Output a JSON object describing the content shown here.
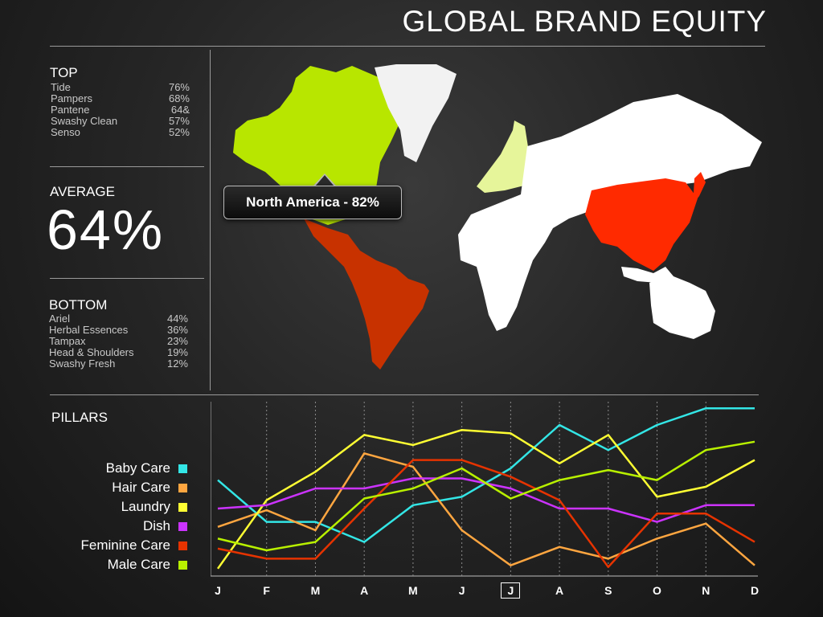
{
  "header": {
    "title": "GLOBAL BRAND EQUITY"
  },
  "top": {
    "label": "TOP",
    "items": [
      {
        "name": "Tide",
        "value": "76%"
      },
      {
        "name": "Pampers",
        "value": "68%"
      },
      {
        "name": "Pantene",
        "value": "64&"
      },
      {
        "name": "Swashy Clean",
        "value": "57%"
      },
      {
        "name": "Senso",
        "value": "52%"
      }
    ]
  },
  "average": {
    "label": "AVERAGE",
    "value": "64%"
  },
  "bottom": {
    "label": "BOTTOM",
    "items": [
      {
        "name": "Ariel",
        "value": "44%"
      },
      {
        "name": "Herbal Essences",
        "value": "36%"
      },
      {
        "name": "Tampax",
        "value": "23%"
      },
      {
        "name": "Head & Shoulders",
        "value": "19%"
      },
      {
        "name": "Swashy Fresh",
        "value": "12%"
      }
    ]
  },
  "map": {
    "tooltip": "North America - 82%",
    "colors": {
      "north_america": "#b8e600",
      "greenland": "#f2f2f2",
      "latin_america": "#c83200",
      "europe_west": "#e6f59a",
      "eurasia_africa": "#ffffff",
      "asia": "#ff2a00",
      "oceania": "#ffffff"
    }
  },
  "pillars": {
    "label": "PILLARS"
  },
  "chart_data": {
    "type": "line",
    "x": [
      "J",
      "F",
      "M",
      "A",
      "M",
      "J",
      "J",
      "A",
      "S",
      "O",
      "N",
      "D"
    ],
    "selected_index": 6,
    "ylim": [
      0,
      100
    ],
    "grid": "vertical-dotted",
    "series": [
      {
        "name": "Baby Care",
        "color": "#33e6e6",
        "values": [
          55,
          30,
          30,
          18,
          40,
          45,
          62,
          88,
          73,
          88,
          98,
          98
        ]
      },
      {
        "name": "Hair Care",
        "color": "#ffa640",
        "values": [
          27,
          37,
          25,
          71,
          63,
          25,
          4,
          15,
          8,
          20,
          29,
          4
        ]
      },
      {
        "name": "Laundry",
        "color": "#ffff33",
        "values": [
          2,
          43,
          60,
          82,
          76,
          85,
          83,
          65,
          82,
          45,
          51,
          67
        ]
      },
      {
        "name": "Dish",
        "color": "#cc33ff",
        "values": [
          38,
          40,
          50,
          50,
          56,
          56,
          50,
          38,
          38,
          30,
          40,
          40
        ]
      },
      {
        "name": "Feminine Care",
        "color": "#e63300",
        "values": [
          14,
          8,
          8,
          38,
          67,
          67,
          57,
          43,
          3,
          35,
          35,
          18
        ]
      },
      {
        "name": "Male Care",
        "color": "#b8f000",
        "values": [
          20,
          13,
          18,
          44,
          50,
          62,
          44,
          55,
          61,
          55,
          73,
          78
        ]
      }
    ]
  }
}
